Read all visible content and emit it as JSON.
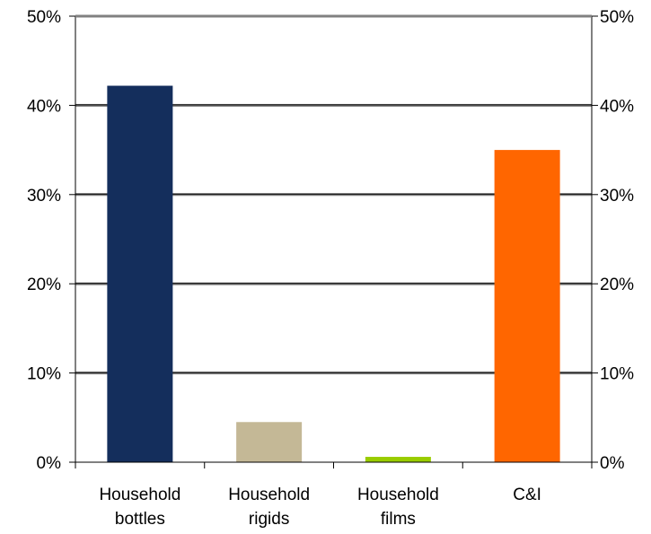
{
  "chart_data": {
    "type": "bar",
    "title": "",
    "xlabel": "",
    "ylabel": "",
    "categories": [
      [
        "Household",
        "bottles"
      ],
      [
        "Household",
        "rigids"
      ],
      [
        "Household",
        "films"
      ],
      [
        "C&I"
      ]
    ],
    "values": [
      42.2,
      4.5,
      0.6,
      35.0
    ],
    "colors": [
      "#142E5C",
      "#C4B896",
      "#99CC00",
      "#FF6600"
    ],
    "ylim": [
      0,
      50
    ],
    "y_ticks": [
      0,
      10,
      20,
      30,
      40,
      50
    ],
    "y_tick_labels": [
      "0%",
      "10%",
      "20%",
      "30%",
      "40%",
      "50%"
    ],
    "secondary_y_axis": true,
    "grid": true,
    "legend": "none"
  }
}
